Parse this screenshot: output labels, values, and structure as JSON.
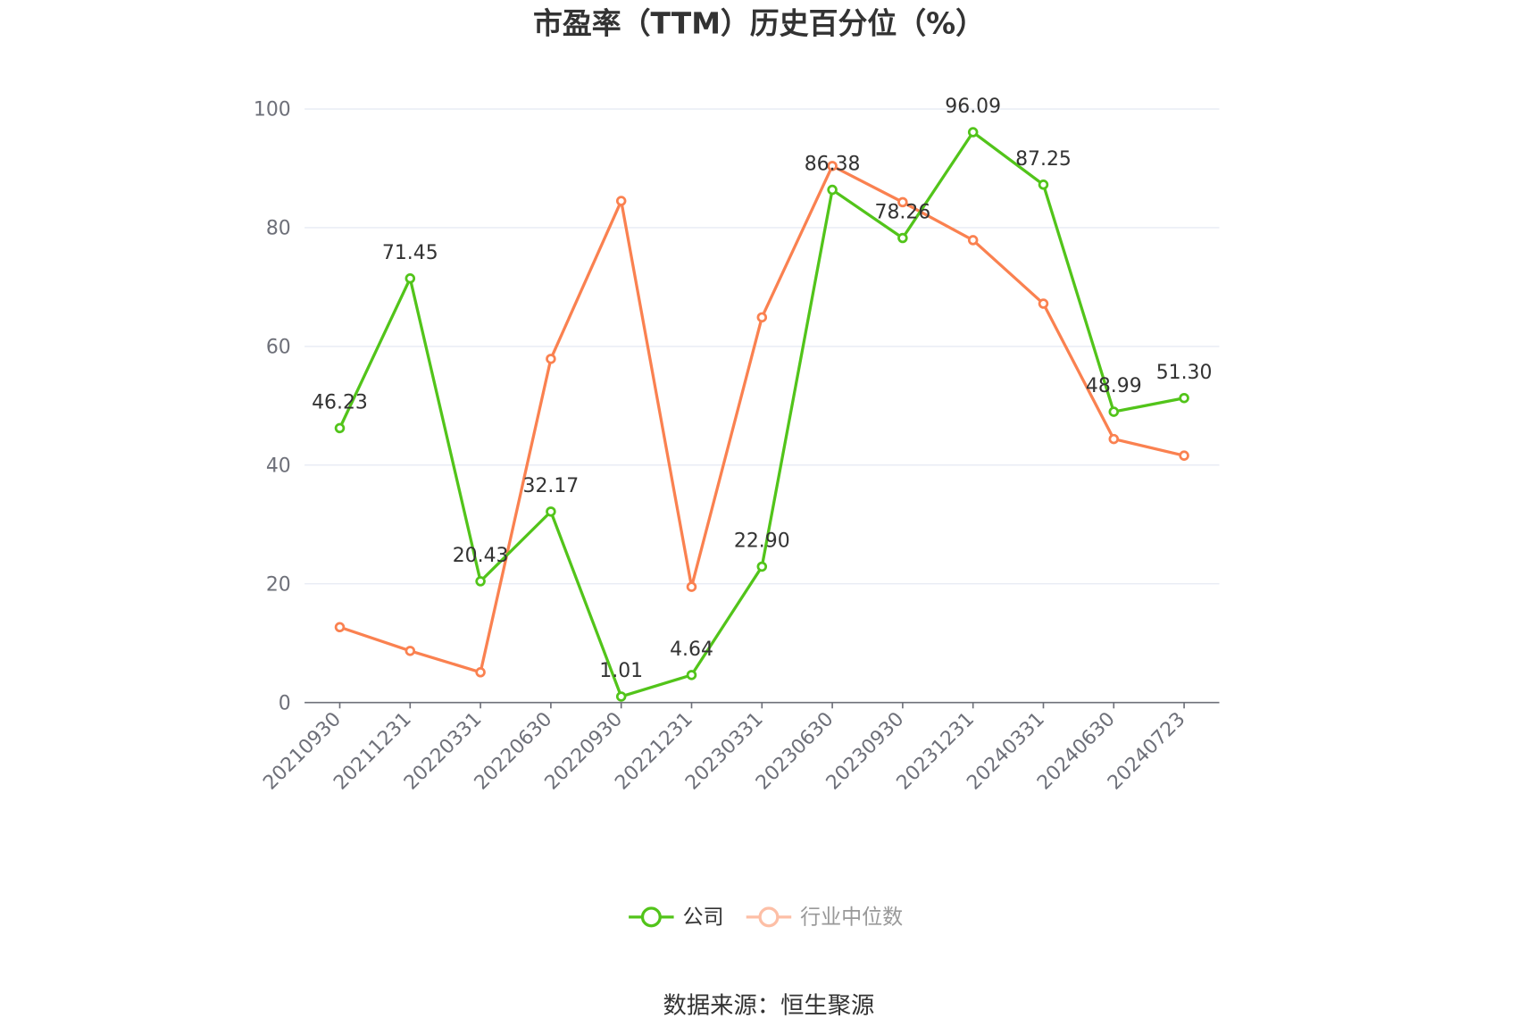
{
  "chart_data": {
    "type": "line",
    "title": "市盈率（TTM）历史百分位（%）",
    "xlabel": "",
    "ylabel": "",
    "ylim": [
      0,
      100
    ],
    "yticks": [
      "0",
      "20",
      "40",
      "60",
      "80",
      "100"
    ],
    "ytick_values": [
      0,
      20,
      40,
      60,
      80,
      100
    ],
    "grid": true,
    "legend_position": "bottom-center",
    "categories": [
      "20210930",
      "20211231",
      "20220331",
      "20220630",
      "20220930",
      "20221231",
      "20230331",
      "20230630",
      "20230930",
      "20231231",
      "20240331",
      "20240630",
      "20240723"
    ],
    "series": [
      {
        "name": "公司",
        "color": "#52c41a",
        "show_labels": true,
        "values": [
          46.23,
          71.45,
          20.43,
          32.17,
          1.01,
          4.64,
          22.9,
          86.38,
          78.26,
          96.09,
          87.25,
          48.99,
          51.3
        ],
        "labels": [
          "46.23",
          "71.45",
          "20.43",
          "32.17",
          "1.01",
          "4.64",
          "22.90",
          "86.38",
          "78.26",
          "96.09",
          "87.25",
          "48.99",
          "51.30"
        ]
      },
      {
        "name": "行业中位数",
        "color": "#fa8150",
        "show_labels": false,
        "values": [
          12.7,
          8.7,
          5.1,
          57.9,
          84.5,
          19.5,
          64.9,
          90.4,
          84.3,
          77.9,
          67.2,
          44.4,
          41.6
        ]
      }
    ],
    "source": "数据来源：恒生聚源"
  }
}
